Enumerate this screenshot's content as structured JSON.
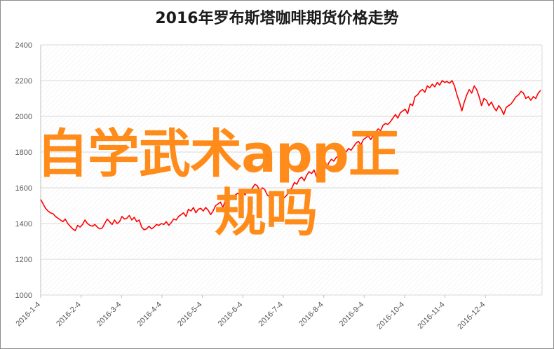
{
  "title": "2016年罗布斯塔咖啡期货价格走势",
  "overlay_text": [
    "自学武术app正",
    "规吗"
  ],
  "colors": {
    "line": "#ff0000",
    "overlay": "#ff8c1a",
    "grid": "#d9d9d9"
  },
  "chart_data": {
    "type": "line",
    "title": "2016年罗布斯塔咖啡期货价格走势",
    "xlabel": "",
    "ylabel": "",
    "ylim": [
      1000,
      2400
    ],
    "yticks": [
      1000,
      1200,
      1400,
      1600,
      1800,
      2000,
      2200,
      2400
    ],
    "xtick_labels": [
      "2016-1-4",
      "2016-2-4",
      "2016-3-4",
      "2016-4-4",
      "2016-5-4",
      "2016-6-4",
      "2016-7-4",
      "2016-8-4",
      "2016-9-4",
      "2016-10-4",
      "2016-11-4",
      "2016-12-4"
    ],
    "grid": true,
    "legend": "none",
    "series": [
      {
        "values": [
          1535,
          1510,
          1485,
          1470,
          1460,
          1455,
          1440,
          1430,
          1420,
          1410,
          1425,
          1400,
          1385,
          1370,
          1360,
          1390,
          1380,
          1395,
          1420,
          1400,
          1390,
          1385,
          1395,
          1380,
          1370,
          1375,
          1400,
          1425,
          1410,
          1395,
          1420,
          1400,
          1410,
          1440,
          1425,
          1430,
          1445,
          1420,
          1435,
          1410,
          1420,
          1380,
          1365,
          1370,
          1385,
          1370,
          1380,
          1395,
          1390,
          1400,
          1395,
          1410,
          1390,
          1405,
          1425,
          1420,
          1440,
          1450,
          1460,
          1440,
          1480,
          1470,
          1490,
          1460,
          1480,
          1485,
          1470,
          1490,
          1475,
          1450,
          1470,
          1500,
          1510,
          1520,
          1490,
          1530,
          1540,
          1555,
          1545,
          1560,
          1570,
          1555,
          1580,
          1560,
          1590,
          1575,
          1600,
          1620,
          1610,
          1580,
          1600,
          1590,
          1560,
          1550,
          1570,
          1560,
          1575,
          1565,
          1550,
          1545,
          1560,
          1580,
          1600,
          1630,
          1620,
          1650,
          1660,
          1640,
          1670,
          1690,
          1680,
          1700,
          1660,
          1680,
          1700,
          1720,
          1710,
          1740,
          1760,
          1750,
          1770,
          1780,
          1760,
          1790,
          1800,
          1820,
          1810,
          1830,
          1850,
          1860,
          1840,
          1870,
          1880,
          1890,
          1870,
          1895,
          1910,
          1930,
          1920,
          1950,
          1960,
          1955,
          1970,
          1990,
          2010,
          1990,
          2020,
          2030,
          2040,
          2015,
          2070,
          2060,
          2110,
          2120,
          2140,
          2150,
          2135,
          2170,
          2160,
          2180,
          2165,
          2190,
          2175,
          2200,
          2190,
          2195,
          2185,
          2200,
          2170,
          2120,
          2080,
          2030,
          2080,
          2120,
          2150,
          2130,
          2170,
          2150,
          2110,
          2060,
          2100,
          2090,
          2060,
          2080,
          2050,
          2030,
          2060,
          2040,
          2010,
          2050,
          2060,
          2070,
          2090,
          2110,
          2120,
          2140,
          2130,
          2100,
          2110,
          2090,
          2110,
          2100,
          2130,
          2145
        ]
      }
    ]
  }
}
